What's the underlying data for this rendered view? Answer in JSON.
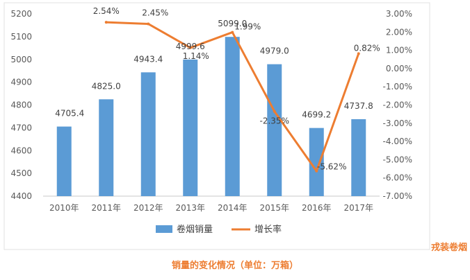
{
  "chart_data": {
    "type": "bar",
    "categories": [
      "2010年",
      "2011年",
      "2012年",
      "2013年",
      "2014年",
      "2015年",
      "2016年",
      "2017年"
    ],
    "series": [
      {
        "name": "卷烟销量",
        "type": "bar",
        "axis": "left",
        "values": [
          4705.4,
          4825.0,
          4943.4,
          4999.6,
          5099.0,
          4979.0,
          4699.2,
          4737.8
        ],
        "labels": [
          "4705.4",
          "4825.0",
          "4943.4",
          "4999.6",
          "5099.0",
          "4979.0",
          "4699.2",
          "4737.8"
        ],
        "color": "#5b9bd5"
      },
      {
        "name": "增长率",
        "type": "line",
        "axis": "right",
        "values": [
          null,
          2.54,
          2.45,
          1.14,
          1.99,
          -2.35,
          -5.62,
          0.82
        ],
        "labels": [
          null,
          "2.54%",
          "2.45%",
          "1.14%",
          "1.99%",
          "-2.35%",
          "-5.62%",
          "0.82%"
        ],
        "color": "#ed7d31"
      }
    ],
    "y_left": {
      "ylim": [
        4400,
        5200
      ],
      "ticks": [
        "4400",
        "4500",
        "4600",
        "4700",
        "4800",
        "4900",
        "5000",
        "5100",
        "5200"
      ]
    },
    "y_right": {
      "ylim": [
        -7,
        3
      ],
      "ticks": [
        "3.00%",
        "2.00%",
        "1.00%",
        "0.00%",
        "-1.00%",
        "-2.00%",
        "-3.00%",
        "-4.00%",
        "-5.00%",
        "-6.00%",
        "-7.00%"
      ]
    },
    "legend_position": "bottom",
    "grid": false
  },
  "caption": {
    "text": "销量的变化情况（单位：万箱）",
    "color": "#ed7d31"
  },
  "watermark": {
    "text": "戎装卷烟",
    "color": "#ed7d31"
  }
}
